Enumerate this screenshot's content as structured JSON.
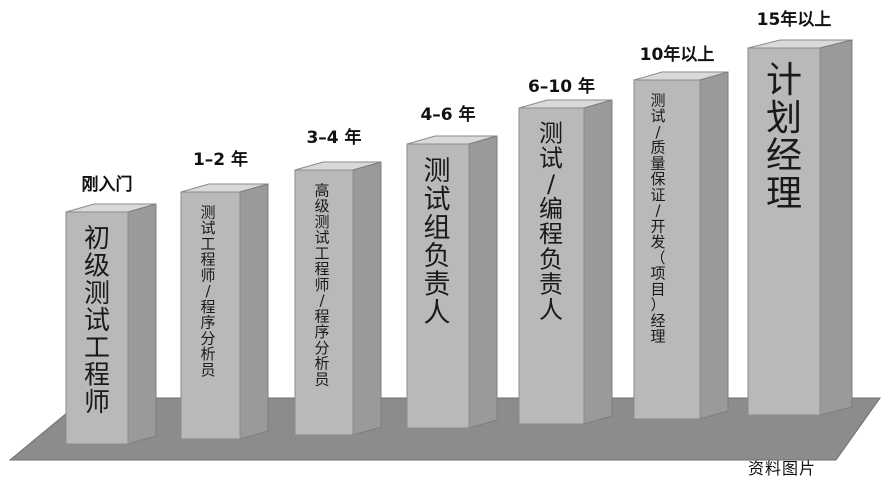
{
  "stages": [
    {
      "caption": "刚入门",
      "role": "初级测试工程师"
    },
    {
      "caption": "1–2 年",
      "role": "测试工程师/程序分析员"
    },
    {
      "caption": "3–4 年",
      "role": "高级测试工程师/程序分析员"
    },
    {
      "caption": "4–6 年",
      "role": "测试组负责人"
    },
    {
      "caption": "6–10 年",
      "role": "测试/编程负责人"
    },
    {
      "caption": "10年以上",
      "role": "测试/质量保证/开发（项目）经理"
    },
    {
      "caption": "15年以上",
      "role": "计划经理"
    }
  ],
  "source_note": "资料图片",
  "colors": {
    "floor": "#8c8c8c",
    "floor_edge": "#6e6e6e",
    "pillar_front": "#b9b9b9",
    "pillar_side": "#9a9a9a",
    "pillar_top": "#d9d9d9",
    "text": "#1a1a1a"
  }
}
